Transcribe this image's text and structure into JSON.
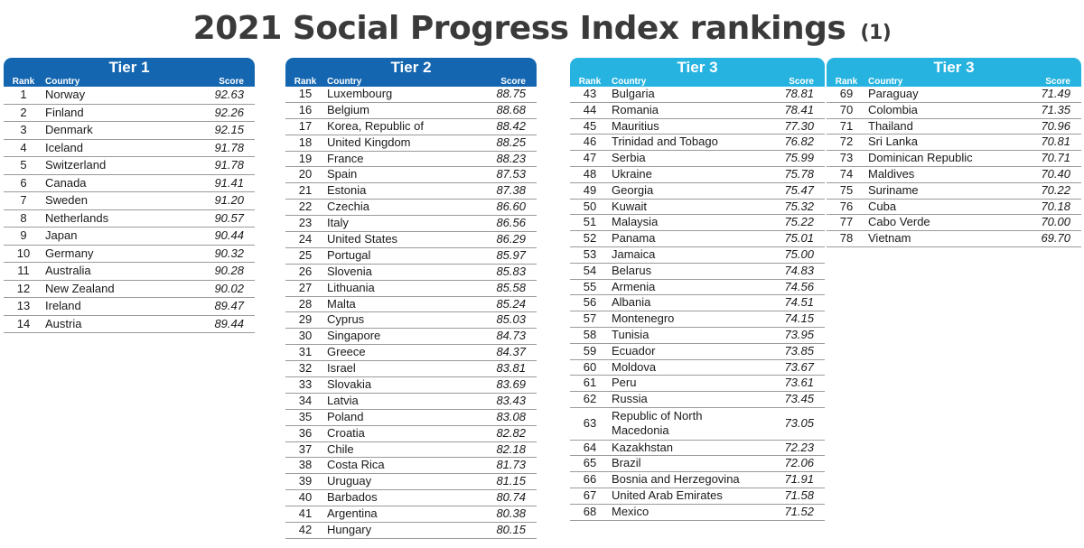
{
  "title": "2021 Social Progress Index rankings",
  "title_note": "(1)",
  "colors": {
    "tier1_header": "#1466b0",
    "tier2_header": "#1466b0",
    "tier3_header": "#27b3e0"
  },
  "headers": {
    "rank": "Rank",
    "country": "Country",
    "score": "Score"
  },
  "tiers": [
    {
      "name": "Tier 1",
      "rows": [
        {
          "rank": "1",
          "country": "Norway",
          "score": "92.63"
        },
        {
          "rank": "2",
          "country": "Finland",
          "score": "92.26"
        },
        {
          "rank": "3",
          "country": "Denmark",
          "score": "92.15"
        },
        {
          "rank": "4",
          "country": "Iceland",
          "score": "91.78"
        },
        {
          "rank": "5",
          "country": "Switzerland",
          "score": "91.78"
        },
        {
          "rank": "6",
          "country": "Canada",
          "score": "91.41"
        },
        {
          "rank": "7",
          "country": "Sweden",
          "score": "91.20"
        },
        {
          "rank": "8",
          "country": "Netherlands",
          "score": "90.57"
        },
        {
          "rank": "9",
          "country": "Japan",
          "score": "90.44"
        },
        {
          "rank": "10",
          "country": "Germany",
          "score": "90.32"
        },
        {
          "rank": "11",
          "country": "Australia",
          "score": "90.28"
        },
        {
          "rank": "12",
          "country": "New Zealand",
          "score": "90.02"
        },
        {
          "rank": "13",
          "country": "Ireland",
          "score": "89.47"
        },
        {
          "rank": "14",
          "country": "Austria",
          "score": "89.44"
        }
      ]
    },
    {
      "name": "Tier 2",
      "rows": [
        {
          "rank": "15",
          "country": "Luxembourg",
          "score": "88.75"
        },
        {
          "rank": "16",
          "country": "Belgium",
          "score": "88.68"
        },
        {
          "rank": "17",
          "country": "Korea, Republic of",
          "score": "88.42"
        },
        {
          "rank": "18",
          "country": "United Kingdom",
          "score": "88.25"
        },
        {
          "rank": "19",
          "country": "France",
          "score": "88.23"
        },
        {
          "rank": "20",
          "country": "Spain",
          "score": "87.53"
        },
        {
          "rank": "21",
          "country": "Estonia",
          "score": "87.38"
        },
        {
          "rank": "22",
          "country": "Czechia",
          "score": "86.60"
        },
        {
          "rank": "23",
          "country": "Italy",
          "score": "86.56"
        },
        {
          "rank": "24",
          "country": "United States",
          "score": "86.29"
        },
        {
          "rank": "25",
          "country": "Portugal",
          "score": "85.97"
        },
        {
          "rank": "26",
          "country": "Slovenia",
          "score": "85.83"
        },
        {
          "rank": "27",
          "country": "Lithuania",
          "score": "85.58"
        },
        {
          "rank": "28",
          "country": "Malta",
          "score": "85.24"
        },
        {
          "rank": "29",
          "country": "Cyprus",
          "score": "85.03"
        },
        {
          "rank": "30",
          "country": "Singapore",
          "score": "84.73"
        },
        {
          "rank": "31",
          "country": "Greece",
          "score": "84.37"
        },
        {
          "rank": "32",
          "country": "Israel",
          "score": "83.81"
        },
        {
          "rank": "33",
          "country": "Slovakia",
          "score": "83.69"
        },
        {
          "rank": "34",
          "country": "Latvia",
          "score": "83.43"
        },
        {
          "rank": "35",
          "country": "Poland",
          "score": "83.08"
        },
        {
          "rank": "36",
          "country": "Croatia",
          "score": "82.82"
        },
        {
          "rank": "37",
          "country": "Chile",
          "score": "82.18"
        },
        {
          "rank": "38",
          "country": "Costa Rica",
          "score": "81.73"
        },
        {
          "rank": "39",
          "country": "Uruguay",
          "score": "81.15"
        },
        {
          "rank": "40",
          "country": "Barbados",
          "score": "80.74"
        },
        {
          "rank": "41",
          "country": "Argentina",
          "score": "80.38"
        },
        {
          "rank": "42",
          "country": "Hungary",
          "score": "80.15"
        }
      ]
    },
    {
      "name": "Tier 3",
      "rows": [
        {
          "rank": "43",
          "country": "Bulgaria",
          "score": "78.81"
        },
        {
          "rank": "44",
          "country": "Romania",
          "score": "78.41"
        },
        {
          "rank": "45",
          "country": "Mauritius",
          "score": "77.30"
        },
        {
          "rank": "46",
          "country": "Trinidad and Tobago",
          "score": "76.82"
        },
        {
          "rank": "47",
          "country": "Serbia",
          "score": "75.99"
        },
        {
          "rank": "48",
          "country": "Ukraine",
          "score": "75.78"
        },
        {
          "rank": "49",
          "country": "Georgia",
          "score": "75.47"
        },
        {
          "rank": "50",
          "country": "Kuwait",
          "score": "75.32"
        },
        {
          "rank": "51",
          "country": "Malaysia",
          "score": "75.22"
        },
        {
          "rank": "52",
          "country": "Panama",
          "score": "75.01"
        },
        {
          "rank": "53",
          "country": "Jamaica",
          "score": "75.00"
        },
        {
          "rank": "54",
          "country": "Belarus",
          "score": "74.83"
        },
        {
          "rank": "55",
          "country": "Armenia",
          "score": "74.56"
        },
        {
          "rank": "56",
          "country": "Albania",
          "score": "74.51"
        },
        {
          "rank": "57",
          "country": "Montenegro",
          "score": "74.15"
        },
        {
          "rank": "58",
          "country": "Tunisia",
          "score": "73.95"
        },
        {
          "rank": "59",
          "country": "Ecuador",
          "score": "73.85"
        },
        {
          "rank": "60",
          "country": "Moldova",
          "score": "73.67"
        },
        {
          "rank": "61",
          "country": "Peru",
          "score": "73.61"
        },
        {
          "rank": "62",
          "country": "Russia",
          "score": "73.45"
        },
        {
          "rank": "63",
          "country": "Republic of North Macedonia",
          "score": "73.05"
        },
        {
          "rank": "64",
          "country": "Kazakhstan",
          "score": "72.23"
        },
        {
          "rank": "65",
          "country": "Brazil",
          "score": "72.06"
        },
        {
          "rank": "66",
          "country": "Bosnia and Herzegovina",
          "score": "71.91"
        },
        {
          "rank": "67",
          "country": "United Arab Emirates",
          "score": "71.58"
        },
        {
          "rank": "68",
          "country": "Mexico",
          "score": "71.52"
        }
      ]
    },
    {
      "name": "Tier 3",
      "rows": [
        {
          "rank": "69",
          "country": "Paraguay",
          "score": "71.49"
        },
        {
          "rank": "70",
          "country": "Colombia",
          "score": "71.35"
        },
        {
          "rank": "71",
          "country": "Thailand",
          "score": "70.96"
        },
        {
          "rank": "72",
          "country": "Sri Lanka",
          "score": "70.81"
        },
        {
          "rank": "73",
          "country": "Dominican Republic",
          "score": "70.71"
        },
        {
          "rank": "74",
          "country": "Maldives",
          "score": "70.40"
        },
        {
          "rank": "75",
          "country": "Suriname",
          "score": "70.22"
        },
        {
          "rank": "76",
          "country": "Cuba",
          "score": "70.18"
        },
        {
          "rank": "77",
          "country": "Cabo Verde",
          "score": "70.00"
        },
        {
          "rank": "78",
          "country": "Vietnam",
          "score": "69.70"
        }
      ]
    }
  ]
}
